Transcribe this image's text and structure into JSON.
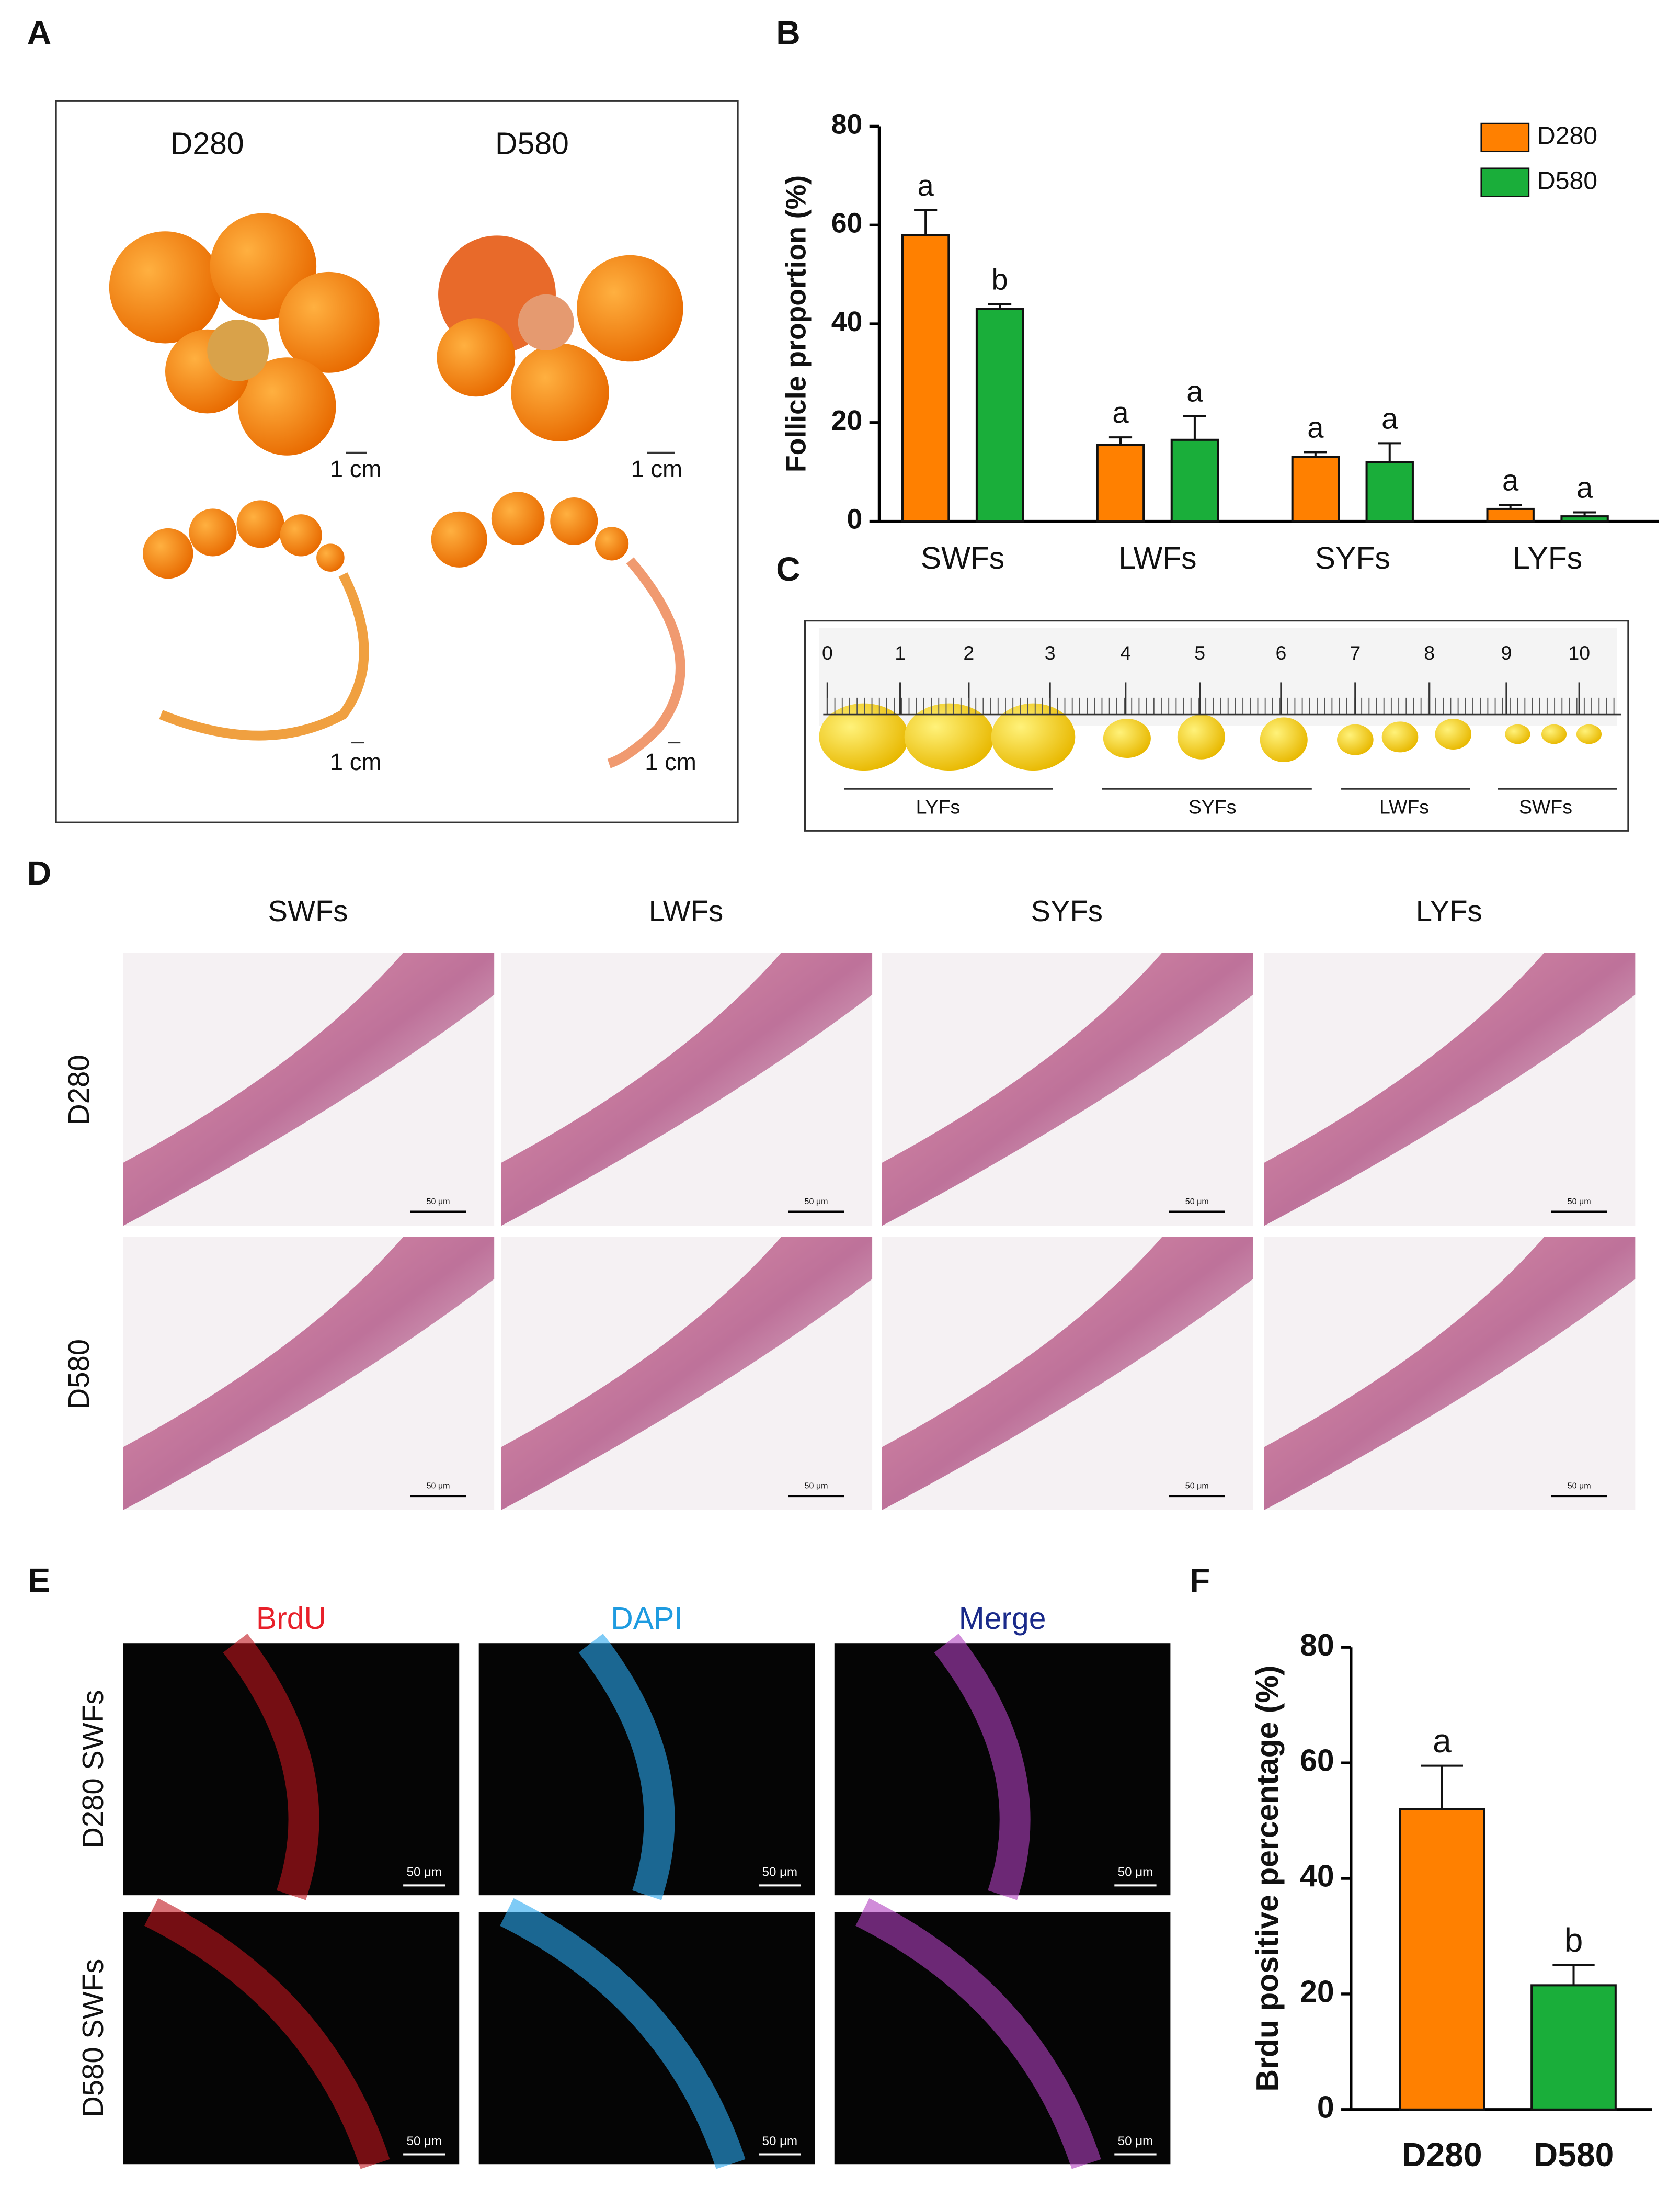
{
  "panel_labels": [
    "A",
    "B",
    "C",
    "D",
    "E",
    "F"
  ],
  "panel_a": {
    "columns": [
      "D280",
      "D580"
    ],
    "scale_label": "1 cm"
  },
  "panel_c": {
    "ruler_numbers": [
      0,
      1,
      2,
      3,
      4,
      5,
      6,
      7,
      8,
      9,
      10
    ],
    "groups": [
      "LYFs",
      "SYFs",
      "LWFs",
      "SWFs"
    ]
  },
  "panel_d": {
    "columns": [
      "SWFs",
      "LWFs",
      "SYFs",
      "LYFs"
    ],
    "rows": [
      "D280",
      "D580"
    ],
    "scale_label": "50 μm"
  },
  "panel_e": {
    "columns": [
      "BrdU",
      "DAPI",
      "Merge"
    ],
    "rows": [
      "D280 SWFs",
      "D580 SWFs"
    ],
    "scale_label": "50 μm"
  },
  "chart_data": [
    {
      "type": "grouped_bar",
      "ylabel": "Follicle proportion (%)",
      "categories": [
        "SWFs",
        "LWFs",
        "SYFs",
        "LYFs"
      ],
      "series": [
        {
          "name": "D280",
          "color": "#ff8000",
          "values": [
            58,
            15.5,
            13,
            2.5
          ],
          "errors": [
            5,
            1.5,
            1,
            0.8
          ],
          "letters": [
            "a",
            "a",
            "a",
            "a"
          ]
        },
        {
          "name": "D580",
          "color": "#1aae3a",
          "values": [
            43,
            16.5,
            12,
            1
          ],
          "errors": [
            1,
            4.8,
            3.8,
            0.8
          ],
          "letters": [
            "b",
            "a",
            "a",
            "a"
          ]
        }
      ],
      "ylim": [
        0,
        80
      ],
      "yticks": [
        0,
        20,
        40,
        60,
        80
      ],
      "legend": "upper right"
    },
    {
      "type": "bar",
      "ylabel": "Brdu positive percentage (%)",
      "categories": [
        "D280",
        "D580"
      ],
      "values": [
        52,
        21.5
      ],
      "errors": [
        7.5,
        3.5
      ],
      "letters": [
        "a",
        "b"
      ],
      "colors": [
        "#ff8000",
        "#1aae3a"
      ],
      "ylim": [
        0,
        80
      ],
      "yticks": [
        0,
        20,
        40,
        60,
        80
      ]
    }
  ]
}
